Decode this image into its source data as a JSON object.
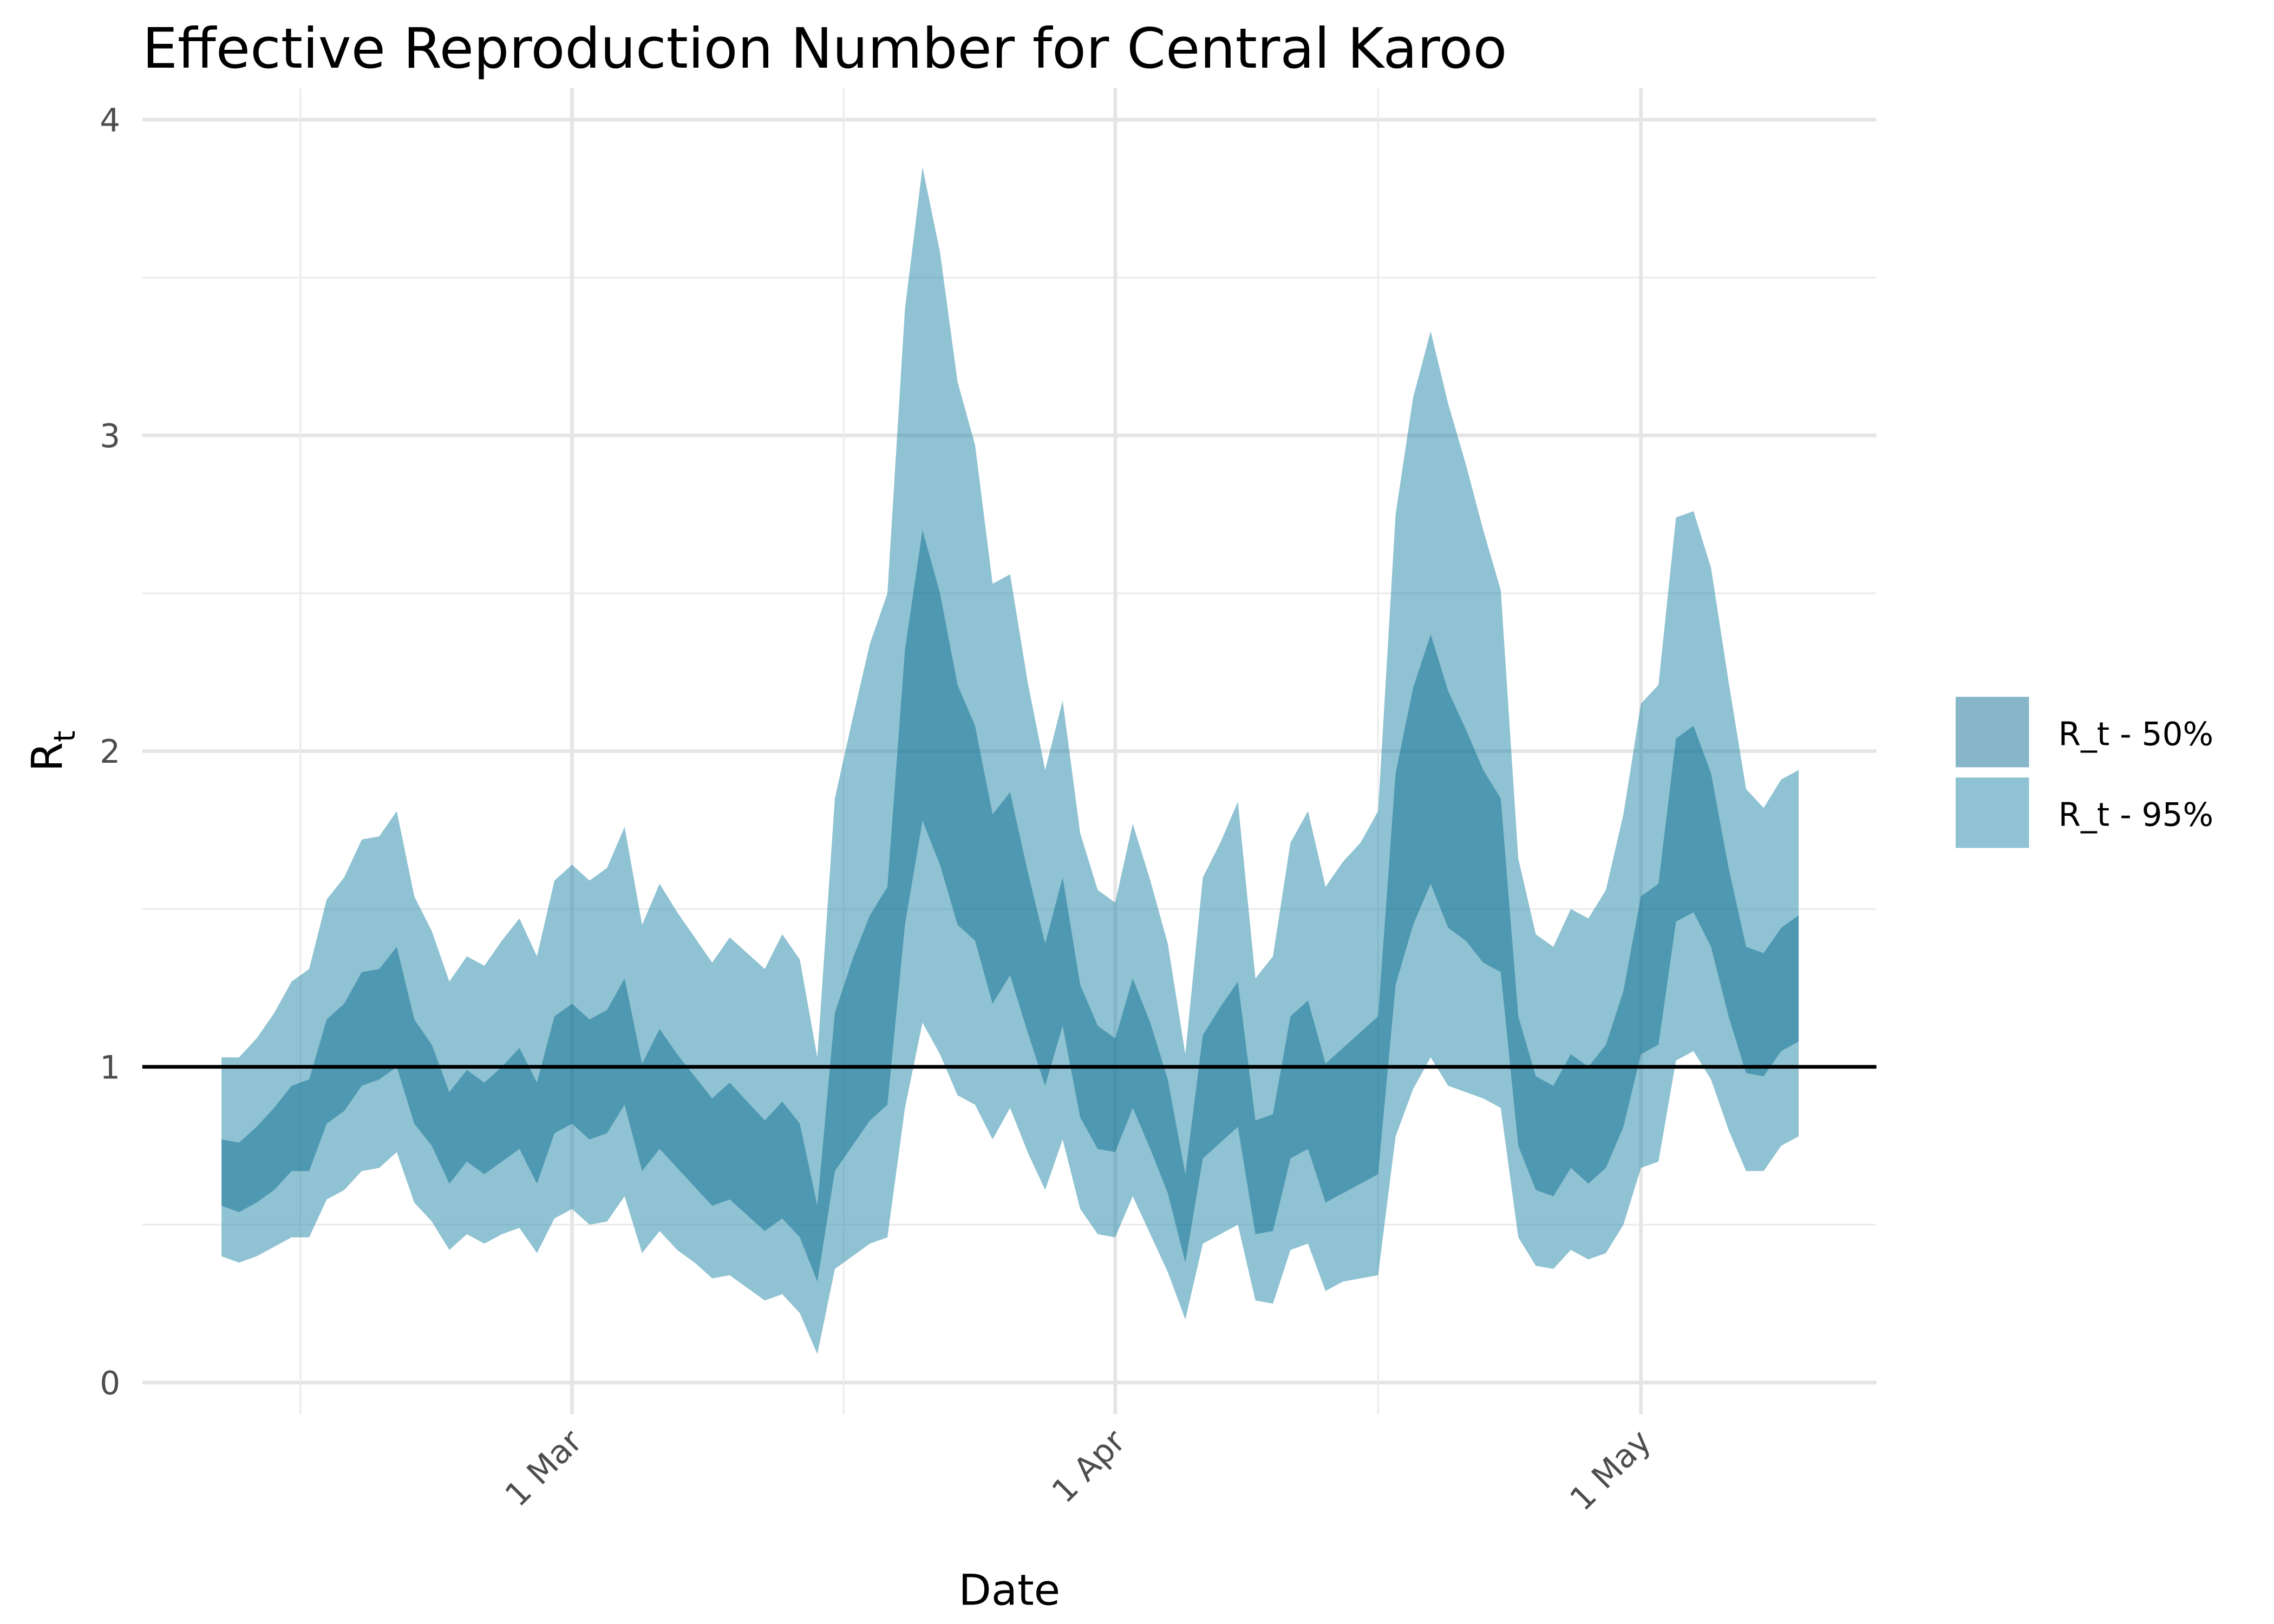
{
  "chart_data": {
    "type": "band",
    "title": "Effective Reproduction Number for Central Karoo",
    "xlabel": "Date",
    "ylabel": "R",
    "ylabel_sub": "t",
    "x": [
      "10 Feb",
      "11 Feb",
      "12 Feb",
      "13 Feb",
      "14 Feb",
      "15 Feb",
      "16 Feb",
      "17 Feb",
      "18 Feb",
      "19 Feb",
      "20 Feb",
      "21 Feb",
      "22 Feb",
      "23 Feb",
      "24 Feb",
      "25 Feb",
      "26 Feb",
      "27 Feb",
      "28 Feb",
      "29 Feb",
      "1 Mar",
      "2 Mar",
      "3 Mar",
      "4 Mar",
      "5 Mar",
      "6 Mar",
      "7 Mar",
      "8 Mar",
      "9 Mar",
      "10 Mar",
      "11 Mar",
      "12 Mar",
      "13 Mar",
      "14 Mar",
      "15 Mar",
      "16 Mar",
      "17 Mar",
      "18 Mar",
      "19 Mar",
      "20 Mar",
      "21 Mar",
      "22 Mar",
      "23 Mar",
      "24 Mar",
      "25 Mar",
      "26 Mar",
      "27 Mar",
      "28 Mar",
      "29 Mar",
      "30 Mar",
      "31 Mar",
      "1 Apr",
      "2 Apr",
      "3 Apr",
      "4 Apr",
      "5 Apr",
      "6 Apr",
      "7 Apr",
      "8 Apr",
      "9 Apr",
      "10 Apr",
      "11 Apr",
      "12 Apr",
      "13 Apr",
      "14 Apr",
      "15 Apr",
      "16 Apr",
      "17 Apr",
      "18 Apr",
      "19 Apr",
      "20 Apr",
      "21 Apr",
      "22 Apr",
      "23 Apr",
      "24 Apr",
      "25 Apr",
      "26 Apr",
      "27 Apr",
      "28 Apr",
      "29 Apr",
      "30 Apr",
      "1 May",
      "2 May",
      "3 May",
      "4 May",
      "5 May",
      "6 May",
      "7 May",
      "8 May",
      "9 May",
      "10 May"
    ],
    "xticks": [
      "1 Mar",
      "1 Apr",
      "1 May"
    ],
    "ylim": [
      -0.1,
      4.1
    ],
    "yticks": [
      0,
      1,
      2,
      3,
      4
    ],
    "grid": true,
    "hline": 1,
    "hline_color": "#000000",
    "legend": "right",
    "series": [
      {
        "name": "R_t - 95%",
        "color": "#1f86a6",
        "lower": [
          0.4,
          0.38,
          0.4,
          0.43,
          0.46,
          0.46,
          0.58,
          0.61,
          0.67,
          0.68,
          0.73,
          0.57,
          0.51,
          0.42,
          0.47,
          0.44,
          0.47,
          0.49,
          0.41,
          0.52,
          0.55,
          0.5,
          0.51,
          0.59,
          0.41,
          0.48,
          0.42,
          0.38,
          0.33,
          0.34,
          0.3,
          0.26,
          0.28,
          0.22,
          0.09,
          0.36,
          0.4,
          0.44,
          0.46,
          0.87,
          1.14,
          1.04,
          0.91,
          0.88,
          0.77,
          0.87,
          0.73,
          0.61,
          0.77,
          0.55,
          0.47,
          0.46,
          0.59,
          0.47,
          0.35,
          0.2,
          0.44,
          0.47,
          0.5,
          0.26,
          0.25,
          0.42,
          0.44,
          0.29,
          0.32,
          0.33,
          0.34,
          0.78,
          0.93,
          1.03,
          0.94,
          0.92,
          0.9,
          0.87,
          0.46,
          0.37,
          0.36,
          0.42,
          0.39,
          0.41,
          0.5,
          0.68,
          0.7,
          1.02,
          1.05,
          0.96,
          0.8,
          0.67,
          0.67,
          0.75,
          0.78
        ],
        "upper": [
          1.03,
          1.03,
          1.09,
          1.17,
          1.27,
          1.31,
          1.53,
          1.6,
          1.72,
          1.73,
          1.81,
          1.54,
          1.43,
          1.27,
          1.35,
          1.32,
          1.4,
          1.47,
          1.35,
          1.59,
          1.64,
          1.59,
          1.63,
          1.76,
          1.45,
          1.58,
          1.49,
          1.41,
          1.33,
          1.41,
          1.36,
          1.31,
          1.42,
          1.34,
          1.03,
          1.85,
          2.1,
          2.34,
          2.5,
          3.4,
          3.85,
          3.58,
          3.17,
          2.97,
          2.53,
          2.56,
          2.22,
          1.94,
          2.16,
          1.74,
          1.56,
          1.52,
          1.77,
          1.59,
          1.39,
          1.04,
          1.6,
          1.71,
          1.84,
          1.28,
          1.35,
          1.71,
          1.81,
          1.57,
          1.65,
          1.71,
          1.81,
          2.75,
          3.12,
          3.33,
          3.1,
          2.91,
          2.7,
          2.51,
          1.66,
          1.42,
          1.38,
          1.5,
          1.47,
          1.56,
          1.8,
          2.15,
          2.21,
          2.74,
          2.76,
          2.58,
          2.22,
          1.88,
          1.82,
          1.91,
          1.94
        ]
      },
      {
        "name": "R_t - 50%",
        "color": "#0e6e90",
        "lower": [
          0.56,
          0.54,
          0.57,
          0.61,
          0.67,
          0.67,
          0.82,
          0.86,
          0.94,
          0.96,
          1.0,
          0.82,
          0.75,
          0.63,
          0.7,
          0.66,
          0.7,
          0.74,
          0.63,
          0.79,
          0.82,
          0.77,
          0.79,
          0.88,
          0.67,
          0.74,
          0.68,
          0.62,
          0.56,
          0.58,
          0.53,
          0.48,
          0.52,
          0.46,
          0.32,
          0.67,
          0.75,
          0.83,
          0.88,
          1.45,
          1.78,
          1.64,
          1.45,
          1.4,
          1.2,
          1.29,
          1.11,
          0.94,
          1.13,
          0.84,
          0.74,
          0.73,
          0.87,
          0.74,
          0.6,
          0.38,
          0.71,
          0.76,
          0.81,
          0.47,
          0.48,
          0.71,
          0.74,
          0.57,
          0.6,
          0.63,
          0.66,
          1.26,
          1.45,
          1.58,
          1.44,
          1.4,
          1.33,
          1.3,
          0.75,
          0.61,
          0.59,
          0.68,
          0.63,
          0.68,
          0.81,
          1.04,
          1.07,
          1.46,
          1.49,
          1.38,
          1.16,
          0.98,
          0.97,
          1.05,
          1.08
        ],
        "upper": [
          0.77,
          0.76,
          0.81,
          0.87,
          0.94,
          0.96,
          1.15,
          1.2,
          1.3,
          1.31,
          1.38,
          1.15,
          1.07,
          0.92,
          0.99,
          0.95,
          1.0,
          1.06,
          0.95,
          1.16,
          1.2,
          1.15,
          1.18,
          1.28,
          1.01,
          1.12,
          1.04,
          0.97,
          0.9,
          0.95,
          0.89,
          0.83,
          0.89,
          0.82,
          0.56,
          1.17,
          1.34,
          1.48,
          1.57,
          2.32,
          2.7,
          2.5,
          2.21,
          2.08,
          1.8,
          1.87,
          1.62,
          1.39,
          1.6,
          1.26,
          1.13,
          1.09,
          1.28,
          1.14,
          0.96,
          0.66,
          1.1,
          1.19,
          1.27,
          0.83,
          0.85,
          1.16,
          1.21,
          1.01,
          1.06,
          1.11,
          1.16,
          1.93,
          2.2,
          2.37,
          2.19,
          2.07,
          1.94,
          1.85,
          1.16,
          0.97,
          0.94,
          1.04,
          1.0,
          1.07,
          1.24,
          1.54,
          1.58,
          2.04,
          2.08,
          1.93,
          1.63,
          1.38,
          1.36,
          1.44,
          1.48
        ]
      }
    ]
  }
}
